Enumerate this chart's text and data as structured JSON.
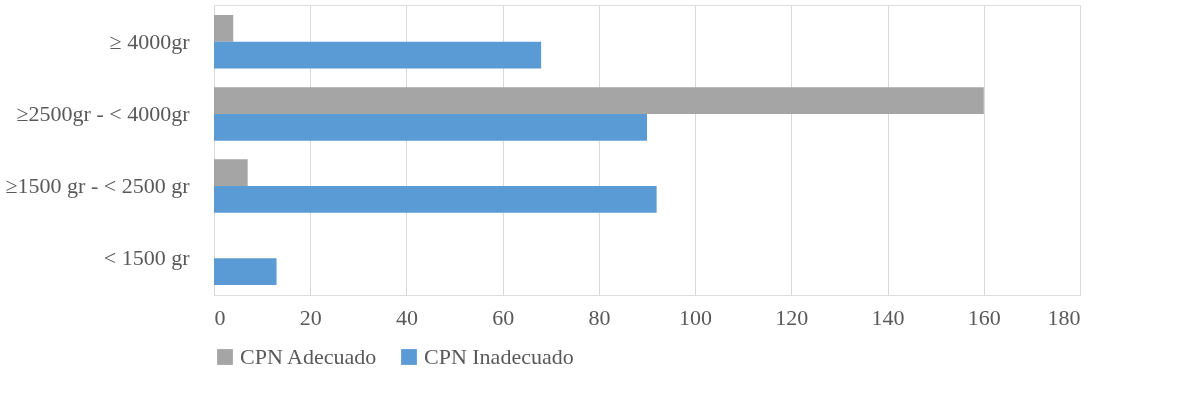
{
  "chart_data": {
    "type": "bar",
    "orientation": "horizontal",
    "categories": [
      "≥ 4000gr",
      "≥2500gr - < 4000gr",
      "≥1500 gr - < 2500 gr",
      "< 1500 gr"
    ],
    "series": [
      {
        "name": "CPN Adecuado",
        "color": "#a5a5a5",
        "values": [
          4,
          160,
          7,
          0
        ]
      },
      {
        "name": "CPN Inadecuado",
        "color": "#5b9bd5",
        "values": [
          68,
          90,
          92,
          13
        ]
      }
    ],
    "xlim": [
      0,
      180
    ],
    "xticks": [
      0,
      20,
      40,
      60,
      80,
      100,
      120,
      140,
      160,
      180
    ],
    "grid": "x",
    "legend": "bottom"
  }
}
